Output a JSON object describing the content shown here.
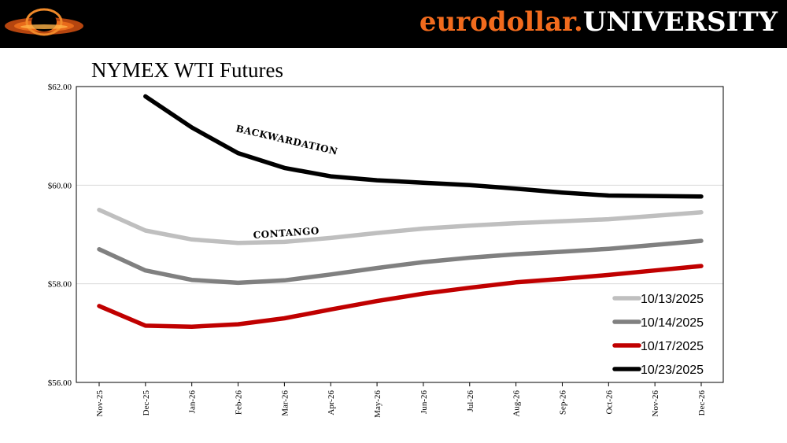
{
  "header": {
    "brand_lower": "eurodollar.",
    "brand_upper": "UNIVERSITY"
  },
  "chart_data": {
    "type": "line",
    "title": "NYMEX WTI Futures",
    "xlabel": "",
    "ylabel": "",
    "ylim": [
      56,
      62
    ],
    "y_ticks": [
      "$56.00",
      "$58.00",
      "$60.00",
      "$62.00"
    ],
    "y_tick_values": [
      56,
      58,
      60,
      62
    ],
    "grid": true,
    "legend_position": "bottom-right",
    "categories": [
      "Nov-25",
      "Dec-25",
      "Jan-26",
      "Feb-26",
      "Mar-26",
      "Apr-26",
      "May-26",
      "Jun-26",
      "Jul-26",
      "Aug-26",
      "Sep-26",
      "Oct-26",
      "Nov-26",
      "Dec-26"
    ],
    "series": [
      {
        "name": "10/13/2025",
        "color": "#bfbfbf",
        "values": [
          59.5,
          59.08,
          58.9,
          58.83,
          58.85,
          58.93,
          59.03,
          59.12,
          59.18,
          59.23,
          59.27,
          59.31,
          59.38,
          59.45
        ]
      },
      {
        "name": "10/14/2025",
        "color": "#808080",
        "values": [
          58.7,
          58.27,
          58.08,
          58.02,
          58.07,
          58.19,
          58.32,
          58.44,
          58.53,
          58.6,
          58.65,
          58.71,
          58.79,
          58.87
        ]
      },
      {
        "name": "10/17/2025",
        "color": "#c00000",
        "values": [
          57.55,
          57.15,
          57.13,
          57.18,
          57.3,
          57.48,
          57.65,
          57.8,
          57.92,
          58.03,
          58.1,
          58.18,
          58.27,
          58.36
        ]
      },
      {
        "name": "10/23/2025",
        "color": "#000000",
        "values": [
          null,
          61.8,
          61.17,
          60.65,
          60.35,
          60.18,
          60.1,
          60.05,
          60.0,
          59.93,
          59.85,
          59.79,
          59.78,
          59.77
        ]
      }
    ],
    "annotations": [
      {
        "text": "BACKWARDATION"
      },
      {
        "text": "CONTANGO"
      }
    ]
  }
}
